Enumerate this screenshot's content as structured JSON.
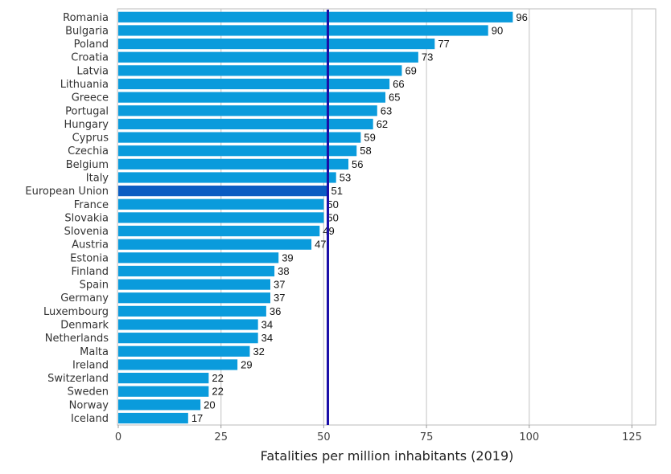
{
  "chart_data": {
    "type": "bar",
    "orientation": "horizontal",
    "xlabel": "Fatalities per million inhabitants (2019)",
    "categories": [
      "Romania",
      "Bulgaria",
      "Poland",
      "Croatia",
      "Latvia",
      "Lithuania",
      "Greece",
      "Portugal",
      "Hungary",
      "Cyprus",
      "Czechia",
      "Belgium",
      "Italy",
      "European Union",
      "France",
      "Slovakia",
      "Slovenia",
      "Austria",
      "Estonia",
      "Finland",
      "Spain",
      "Germany",
      "Luxembourg",
      "Denmark",
      "Netherlands",
      "Malta",
      "Ireland",
      "Switzerland",
      "Sweden",
      "Norway",
      "Iceland"
    ],
    "values": [
      96,
      90,
      77,
      73,
      69,
      66,
      65,
      63,
      62,
      59,
      58,
      56,
      53,
      51,
      50,
      50,
      49,
      47,
      39,
      38,
      37,
      37,
      36,
      34,
      34,
      32,
      29,
      22,
      22,
      20,
      17
    ],
    "value_labels": [
      "96",
      "90",
      "77",
      "73",
      "69",
      "66",
      "65",
      "63",
      "62",
      "59",
      "58",
      "56",
      "53",
      "51",
      "50",
      "50",
      "49",
      "47",
      "39",
      "38",
      "37",
      "37",
      "36",
      "34",
      "34",
      "32",
      "29",
      "22",
      "22",
      "20",
      "17"
    ],
    "highlight_category": "European Union",
    "reference_line": 51,
    "xlim": [
      0,
      130
    ],
    "xticks": [
      0,
      25,
      50,
      75,
      100,
      125
    ],
    "xtick_labels": [
      "0",
      "25",
      "50",
      "75",
      "100",
      "125"
    ],
    "grid": "vertical",
    "colors": {
      "bar": "#0a9bdc",
      "highlight_bar": "#0b5cc2",
      "reference_line": "#1a0fa8",
      "grid": "#cccccc",
      "frame": "#bbbbbb"
    }
  }
}
